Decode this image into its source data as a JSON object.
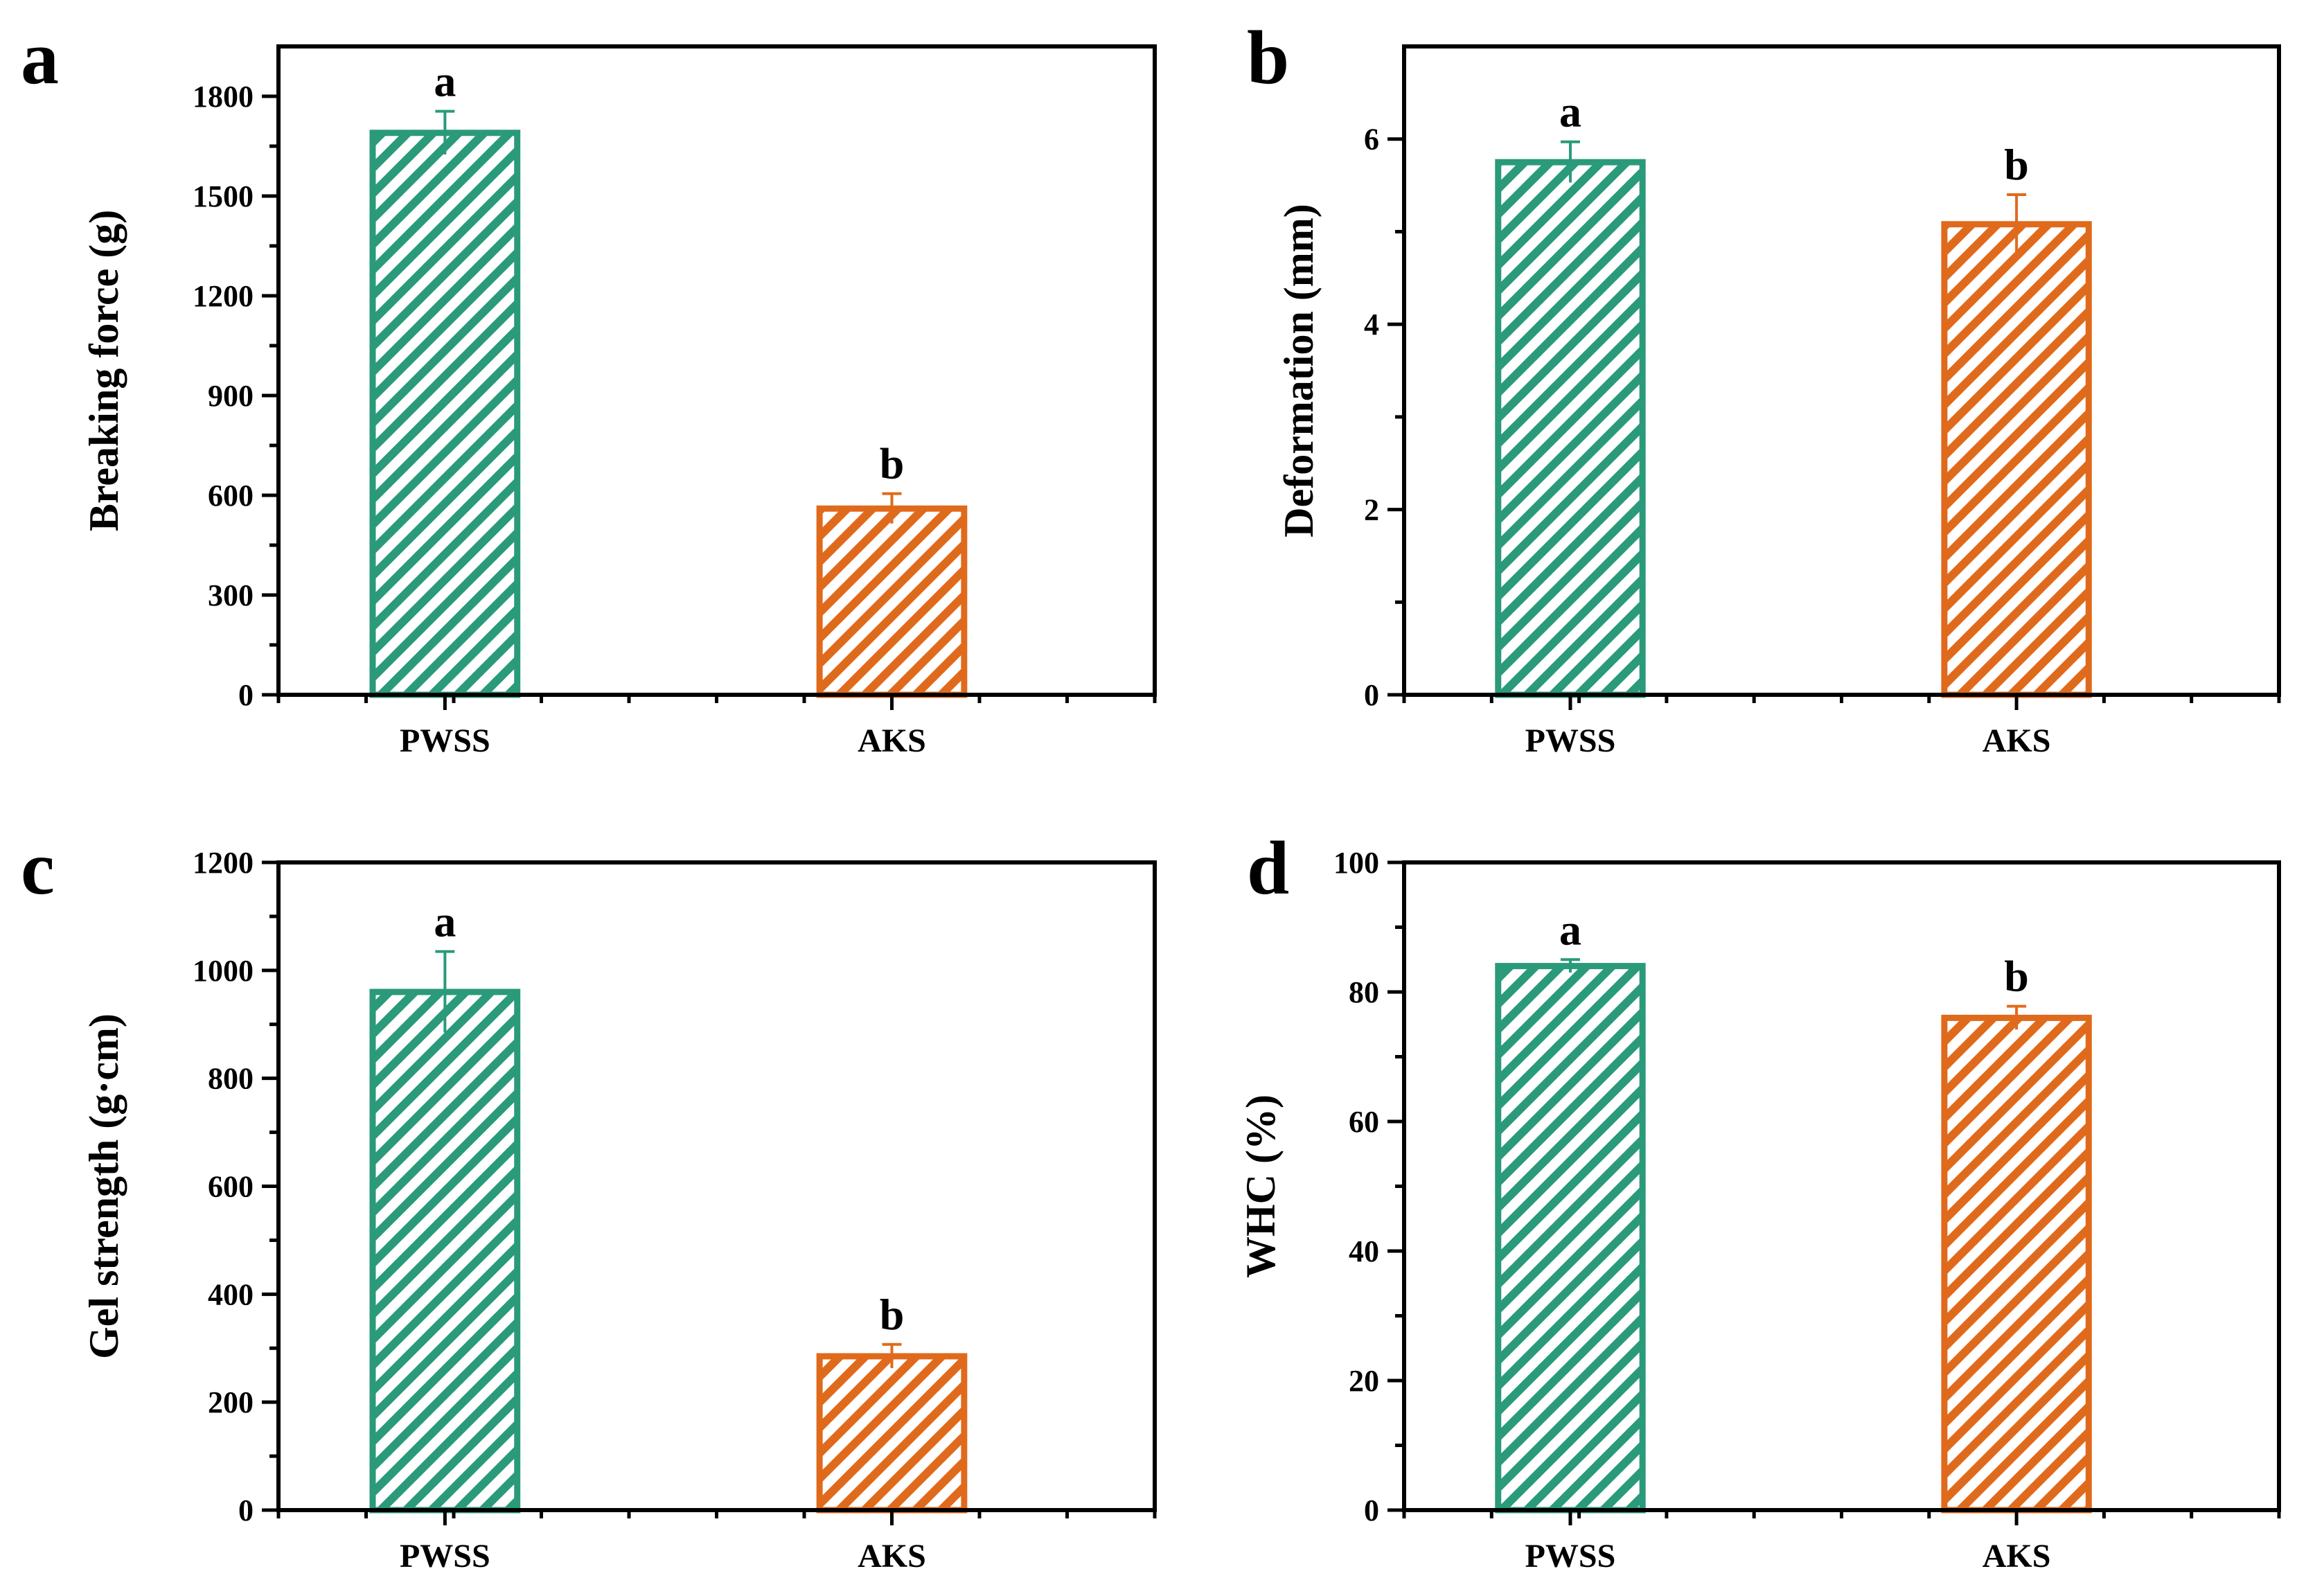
{
  "colors": {
    "PWSS": "#2a9a7a",
    "AKS": "#e06a1c"
  },
  "chart_data": [
    {
      "panel": "a",
      "type": "bar",
      "categories": [
        "PWSS",
        "AKS"
      ],
      "values": [
        1690,
        560
      ],
      "errors": [
        65,
        45
      ],
      "significance": [
        "a",
        "b"
      ],
      "ylabel": "Breaking force (g)",
      "ylim": [
        0,
        1950
      ],
      "yticks": [
        0,
        300,
        600,
        900,
        1200,
        1500,
        1800
      ],
      "tick_labels": [
        "0",
        "300",
        "600",
        "900",
        "1200",
        "1500",
        "1800"
      ]
    },
    {
      "panel": "b",
      "type": "bar",
      "categories": [
        "PWSS",
        "AKS"
      ],
      "values": [
        5.75,
        5.08
      ],
      "errors": [
        0.22,
        0.32
      ],
      "significance": [
        "a",
        "b"
      ],
      "ylabel": "Deformation (mm)",
      "ylim": [
        0,
        7
      ],
      "yticks": [
        0,
        2,
        4,
        6
      ],
      "tick_labels": [
        "0",
        "2",
        "4",
        "6"
      ]
    },
    {
      "panel": "c",
      "type": "bar",
      "categories": [
        "PWSS",
        "AKS"
      ],
      "values": [
        960,
        285
      ],
      "errors": [
        75,
        22
      ],
      "significance": [
        "a",
        "b"
      ],
      "ylabel": "Gel strength (g·cm)",
      "ylim": [
        0,
        1200
      ],
      "yticks": [
        0,
        200,
        400,
        600,
        800,
        1000,
        1200
      ],
      "tick_labels": [
        "0",
        "200",
        "400",
        "600",
        "800",
        "1000",
        "1200"
      ]
    },
    {
      "panel": "d",
      "type": "bar",
      "categories": [
        "PWSS",
        "AKS"
      ],
      "values": [
        84,
        76
      ],
      "errors": [
        1.0,
        1.8
      ],
      "significance": [
        "a",
        "b"
      ],
      "ylabel": "WHC (%)",
      "ylim": [
        0,
        100
      ],
      "yticks": [
        0,
        20,
        40,
        60,
        80,
        100
      ],
      "tick_labels": [
        "0",
        "20",
        "40",
        "60",
        "80",
        "100"
      ]
    }
  ]
}
